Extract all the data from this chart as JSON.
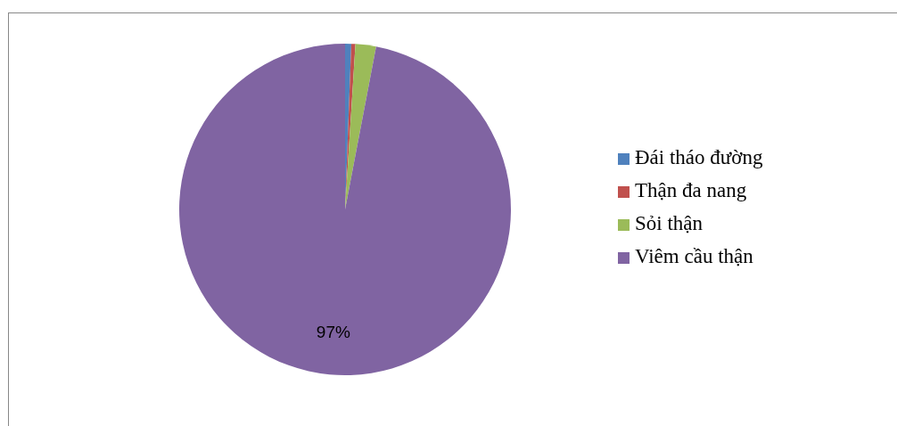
{
  "chart_data": {
    "type": "pie",
    "categories": [
      "Đái tháo đường",
      "Thận đa nang",
      "Sỏi thận",
      "Viêm cầu thận"
    ],
    "values": [
      0.6,
      0.4,
      2,
      97
    ],
    "colors": [
      "#4f81bd",
      "#c0504d",
      "#9bbb59",
      "#8064a2"
    ],
    "value_labels": [
      null,
      null,
      null,
      "97%"
    ],
    "legend": "right"
  }
}
